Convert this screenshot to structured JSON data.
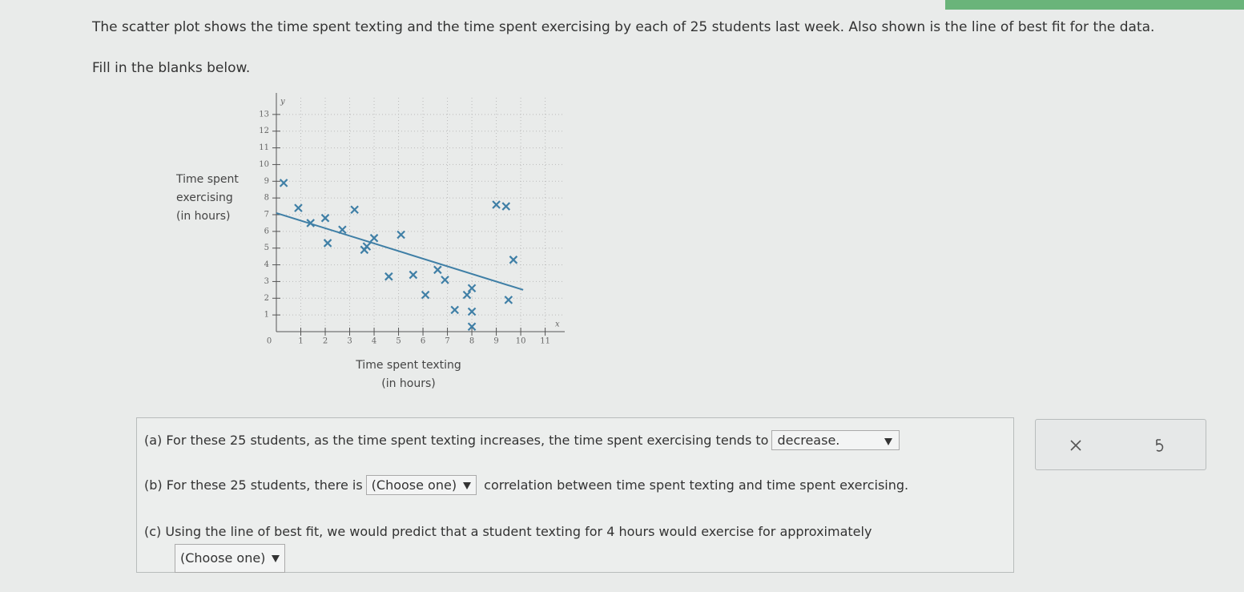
{
  "question": {
    "intro": "The scatter plot shows the time spent texting and the time spent exercising by each of 25 students last week. Also shown is the line of best fit for the data.",
    "instruction": "Fill in the blanks below."
  },
  "chart_data": {
    "type": "scatter",
    "x_letter": "x",
    "y_letter": "y",
    "x_title": [
      "Time spent texting",
      "(in hours)"
    ],
    "y_title": [
      "Time spent",
      "exercising",
      "(in hours)"
    ],
    "x": [
      0.3,
      0.9,
      1.4,
      2.0,
      3.2,
      2.7,
      2.1,
      3.7,
      3.6,
      4.0,
      5.1,
      9.0,
      9.4,
      9.7,
      4.6,
      5.6,
      6.6,
      6.9,
      6.1,
      8.0,
      7.8,
      7.3,
      8.0,
      8.0,
      9.5
    ],
    "y": [
      8.9,
      7.4,
      6.5,
      6.8,
      7.3,
      6.1,
      5.3,
      5.1,
      4.9,
      5.6,
      5.8,
      7.6,
      7.5,
      4.3,
      3.3,
      3.4,
      3.7,
      3.1,
      2.2,
      2.6,
      2.2,
      1.3,
      1.2,
      0.3,
      1.9
    ],
    "color": "#3f7fa6",
    "best_fit": {
      "x": [
        0,
        10.1
      ],
      "y": [
        7.1,
        2.5
      ],
      "color": "#3f7fa6"
    },
    "xlim": [
      0,
      11.8
    ],
    "ylim": [
      0,
      14
    ],
    "xticks": [
      0,
      1,
      2,
      3,
      4,
      5,
      6,
      7,
      8,
      9,
      10,
      11
    ],
    "yticks": [
      1,
      2,
      3,
      4,
      5,
      6,
      7,
      8,
      9,
      10,
      11,
      12,
      13
    ],
    "grid": true
  },
  "parts": [
    {
      "label": "(a)",
      "before": "For these 25 students, as the time spent texting increases, the time spent exercising tends to",
      "choice": "decrease.",
      "after": ""
    },
    {
      "label": "(b)",
      "before": "For these 25 students, there is",
      "choice": "(Choose one)",
      "after": "correlation between time spent texting and time spent exercising."
    },
    {
      "label": "(c)",
      "before": "Using the line of best fit, we would predict that a student texting for 4 hours would exercise for approximately",
      "choice": "(Choose one)",
      "after": ""
    }
  ]
}
